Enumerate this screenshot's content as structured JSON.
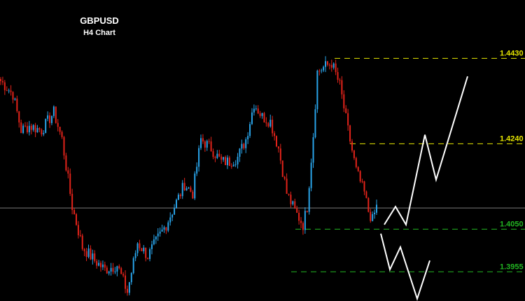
{
  "header": {
    "symbol": "GBPUSD",
    "timeframe": "H4 Chart"
  },
  "colors": {
    "background": "#000000",
    "bull": "#29a3e8",
    "bear": "#e2231a",
    "resistance": "#e6e600",
    "support": "#22b522",
    "projection": "#ffffff",
    "current": "#7a7a7a"
  },
  "chart_data": {
    "type": "candlestick",
    "title": "GBPUSD",
    "subtitle": "H4 Chart",
    "ylim": [
      1.389,
      1.456
    ],
    "current_price": 1.4097,
    "levels": [
      {
        "label": "1.4430",
        "value": 1.443,
        "kind": "resistance",
        "style": "dashed"
      },
      {
        "label": "1.4240",
        "value": 1.424,
        "kind": "resistance",
        "style": "dashed"
      },
      {
        "label": "1.4050",
        "value": 1.405,
        "kind": "support",
        "style": "dashed"
      },
      {
        "label": "1.3955",
        "value": 1.3955,
        "kind": "support",
        "style": "dashed"
      }
    ],
    "waypoints": [
      [
        0,
        1.438
      ],
      [
        6,
        1.435
      ],
      [
        10,
        1.427
      ],
      [
        14,
        1.428
      ],
      [
        20,
        1.427
      ],
      [
        26,
        1.431
      ],
      [
        30,
        1.425
      ],
      [
        35,
        1.41
      ],
      [
        40,
        1.401
      ],
      [
        46,
        1.398
      ],
      [
        51,
        1.396
      ],
      [
        57,
        1.397
      ],
      [
        62,
        1.391
      ],
      [
        67,
        1.402
      ],
      [
        72,
        1.399
      ],
      [
        77,
        1.403
      ],
      [
        81,
        1.406
      ],
      [
        86,
        1.411
      ],
      [
        90,
        1.415
      ],
      [
        94,
        1.413
      ],
      [
        98,
        1.425
      ],
      [
        103,
        1.423
      ],
      [
        108,
        1.42
      ],
      [
        112,
        1.42
      ],
      [
        116,
        1.421
      ],
      [
        120,
        1.425
      ],
      [
        124,
        1.433
      ],
      [
        128,
        1.43
      ],
      [
        132,
        1.429
      ],
      [
        136,
        1.423
      ],
      [
        140,
        1.413
      ],
      [
        144,
        1.409
      ],
      [
        148,
        1.406
      ],
      [
        150,
        1.41
      ],
      [
        153,
        1.426
      ],
      [
        155,
        1.44
      ],
      [
        158,
        1.441
      ],
      [
        162,
        1.442
      ],
      [
        166,
        1.437
      ],
      [
        170,
        1.427
      ],
      [
        174,
        1.418
      ],
      [
        178,
        1.413
      ],
      [
        180,
        1.409
      ],
      [
        182,
        1.407
      ],
      [
        184,
        1.41
      ]
    ],
    "projections": [
      {
        "name": "bullish",
        "points": [
          [
            0,
            1.406
          ],
          [
            1,
            1.41
          ],
          [
            2,
            1.406
          ],
          [
            3,
            1.426
          ],
          [
            4,
            1.416
          ],
          [
            5,
            1.439
          ]
        ]
      },
      {
        "name": "bearish",
        "points": [
          [
            0,
            1.404
          ],
          [
            1,
            1.396
          ],
          [
            2,
            1.401
          ],
          [
            3,
            1.3895
          ],
          [
            4,
            1.398
          ]
        ]
      }
    ]
  }
}
